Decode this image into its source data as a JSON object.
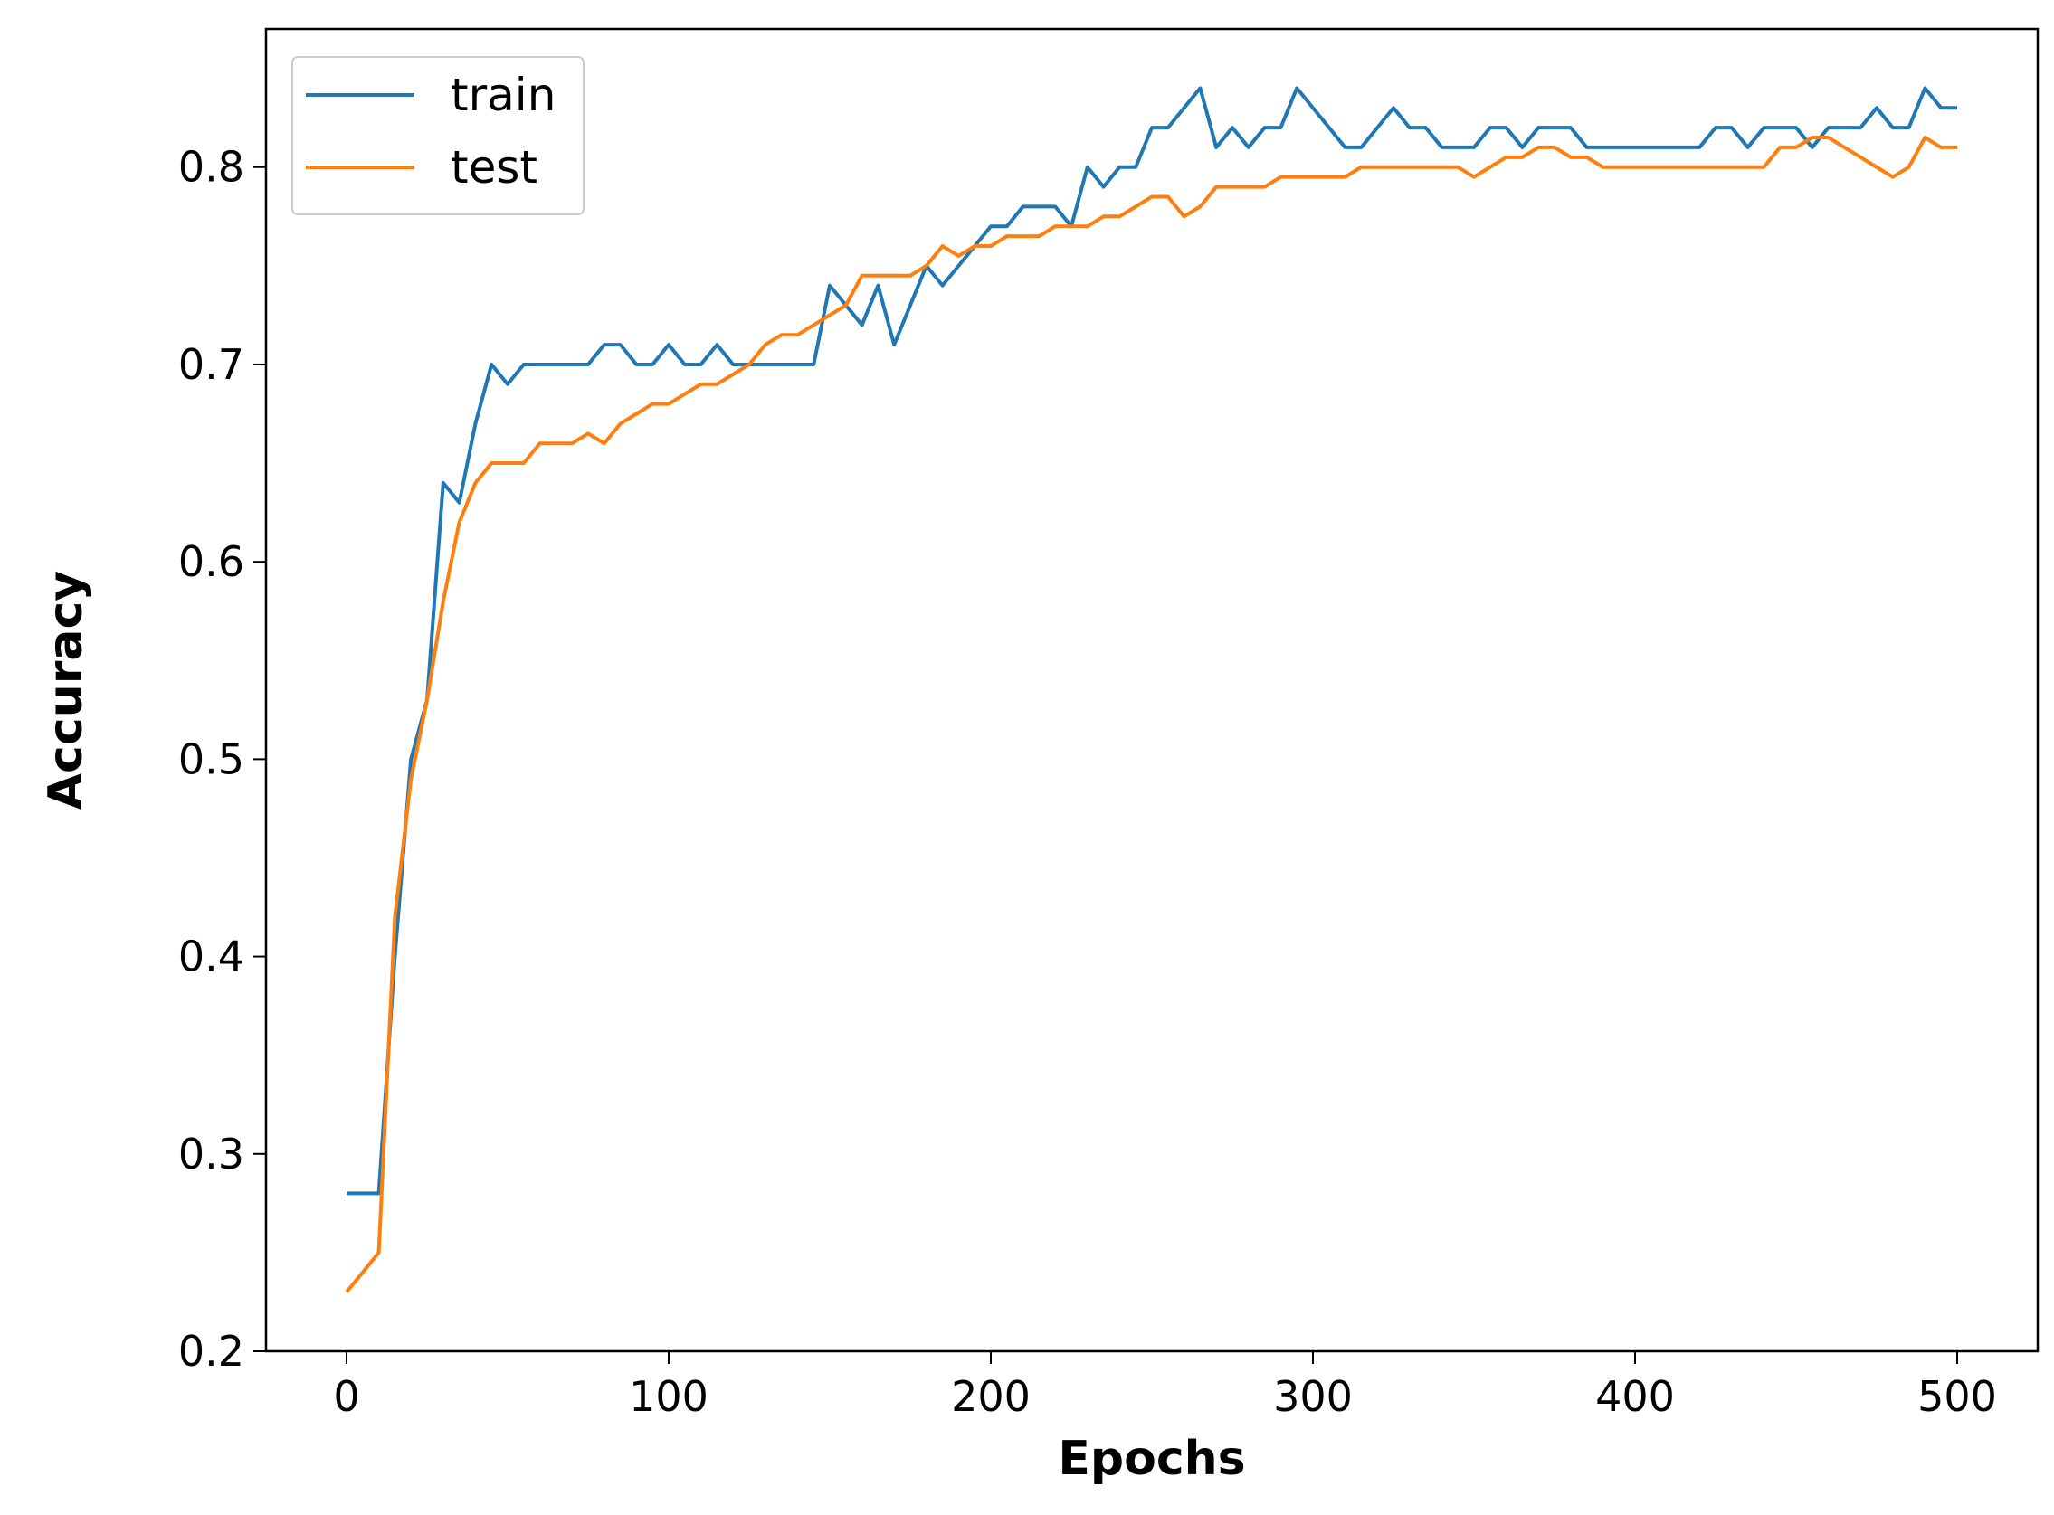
{
  "chart_data": {
    "type": "line",
    "xlabel": "Epochs",
    "ylabel": "Accuracy",
    "x": [
      0,
      5,
      10,
      15,
      20,
      25,
      30,
      35,
      40,
      45,
      50,
      55,
      60,
      65,
      70,
      75,
      80,
      85,
      90,
      95,
      100,
      105,
      110,
      115,
      120,
      125,
      130,
      135,
      140,
      145,
      150,
      155,
      160,
      165,
      170,
      175,
      180,
      185,
      190,
      195,
      200,
      205,
      210,
      215,
      220,
      225,
      230,
      235,
      240,
      245,
      250,
      255,
      260,
      265,
      270,
      275,
      280,
      285,
      290,
      295,
      300,
      305,
      310,
      315,
      320,
      325,
      330,
      335,
      340,
      345,
      350,
      355,
      360,
      365,
      370,
      375,
      380,
      385,
      390,
      395,
      400,
      405,
      410,
      415,
      420,
      425,
      430,
      435,
      440,
      445,
      450,
      455,
      460,
      465,
      470,
      475,
      480,
      485,
      490,
      495,
      500
    ],
    "series": [
      {
        "name": "train",
        "color": "#1f77b4",
        "values": [
          0.28,
          0.28,
          0.28,
          0.4,
          0.5,
          0.53,
          0.64,
          0.63,
          0.67,
          0.7,
          0.69,
          0.7,
          0.7,
          0.7,
          0.7,
          0.7,
          0.71,
          0.71,
          0.7,
          0.7,
          0.71,
          0.7,
          0.7,
          0.71,
          0.7,
          0.7,
          0.7,
          0.7,
          0.7,
          0.7,
          0.74,
          0.73,
          0.72,
          0.74,
          0.71,
          0.73,
          0.75,
          0.74,
          0.75,
          0.76,
          0.77,
          0.77,
          0.78,
          0.78,
          0.78,
          0.77,
          0.8,
          0.79,
          0.8,
          0.8,
          0.82,
          0.82,
          0.83,
          0.84,
          0.81,
          0.82,
          0.81,
          0.82,
          0.82,
          0.84,
          0.83,
          0.82,
          0.81,
          0.81,
          0.82,
          0.83,
          0.82,
          0.82,
          0.81,
          0.81,
          0.81,
          0.82,
          0.82,
          0.81,
          0.82,
          0.82,
          0.82,
          0.81,
          0.81,
          0.81,
          0.81,
          0.81,
          0.81,
          0.81,
          0.81,
          0.82,
          0.82,
          0.81,
          0.82,
          0.82,
          0.82,
          0.81,
          0.82,
          0.82,
          0.82,
          0.83,
          0.82,
          0.82,
          0.84,
          0.83,
          0.83
        ]
      },
      {
        "name": "test",
        "color": "#ff7f0e",
        "values": [
          0.23,
          0.24,
          0.25,
          0.42,
          0.49,
          0.53,
          0.58,
          0.62,
          0.64,
          0.65,
          0.65,
          0.65,
          0.66,
          0.66,
          0.66,
          0.665,
          0.66,
          0.67,
          0.675,
          0.68,
          0.68,
          0.685,
          0.69,
          0.69,
          0.695,
          0.7,
          0.71,
          0.715,
          0.715,
          0.72,
          0.725,
          0.73,
          0.745,
          0.745,
          0.745,
          0.745,
          0.75,
          0.76,
          0.755,
          0.76,
          0.76,
          0.765,
          0.765,
          0.765,
          0.77,
          0.77,
          0.77,
          0.775,
          0.775,
          0.78,
          0.785,
          0.785,
          0.775,
          0.78,
          0.79,
          0.79,
          0.79,
          0.79,
          0.795,
          0.795,
          0.795,
          0.795,
          0.795,
          0.8,
          0.8,
          0.8,
          0.8,
          0.8,
          0.8,
          0.8,
          0.795,
          0.8,
          0.805,
          0.805,
          0.81,
          0.81,
          0.805,
          0.805,
          0.8,
          0.8,
          0.8,
          0.8,
          0.8,
          0.8,
          0.8,
          0.8,
          0.8,
          0.8,
          0.8,
          0.81,
          0.81,
          0.815,
          0.815,
          0.81,
          0.805,
          0.8,
          0.795,
          0.8,
          0.815,
          0.81,
          0.81
        ]
      }
    ],
    "xlim": [
      -25,
      525
    ],
    "ylim": [
      0.2,
      0.87
    ],
    "xticks": [
      0,
      100,
      200,
      300,
      400,
      500
    ],
    "yticks": [
      0.2,
      0.3,
      0.4,
      0.5,
      0.6,
      0.7,
      0.8
    ],
    "grid": false,
    "legend": "upper left"
  }
}
